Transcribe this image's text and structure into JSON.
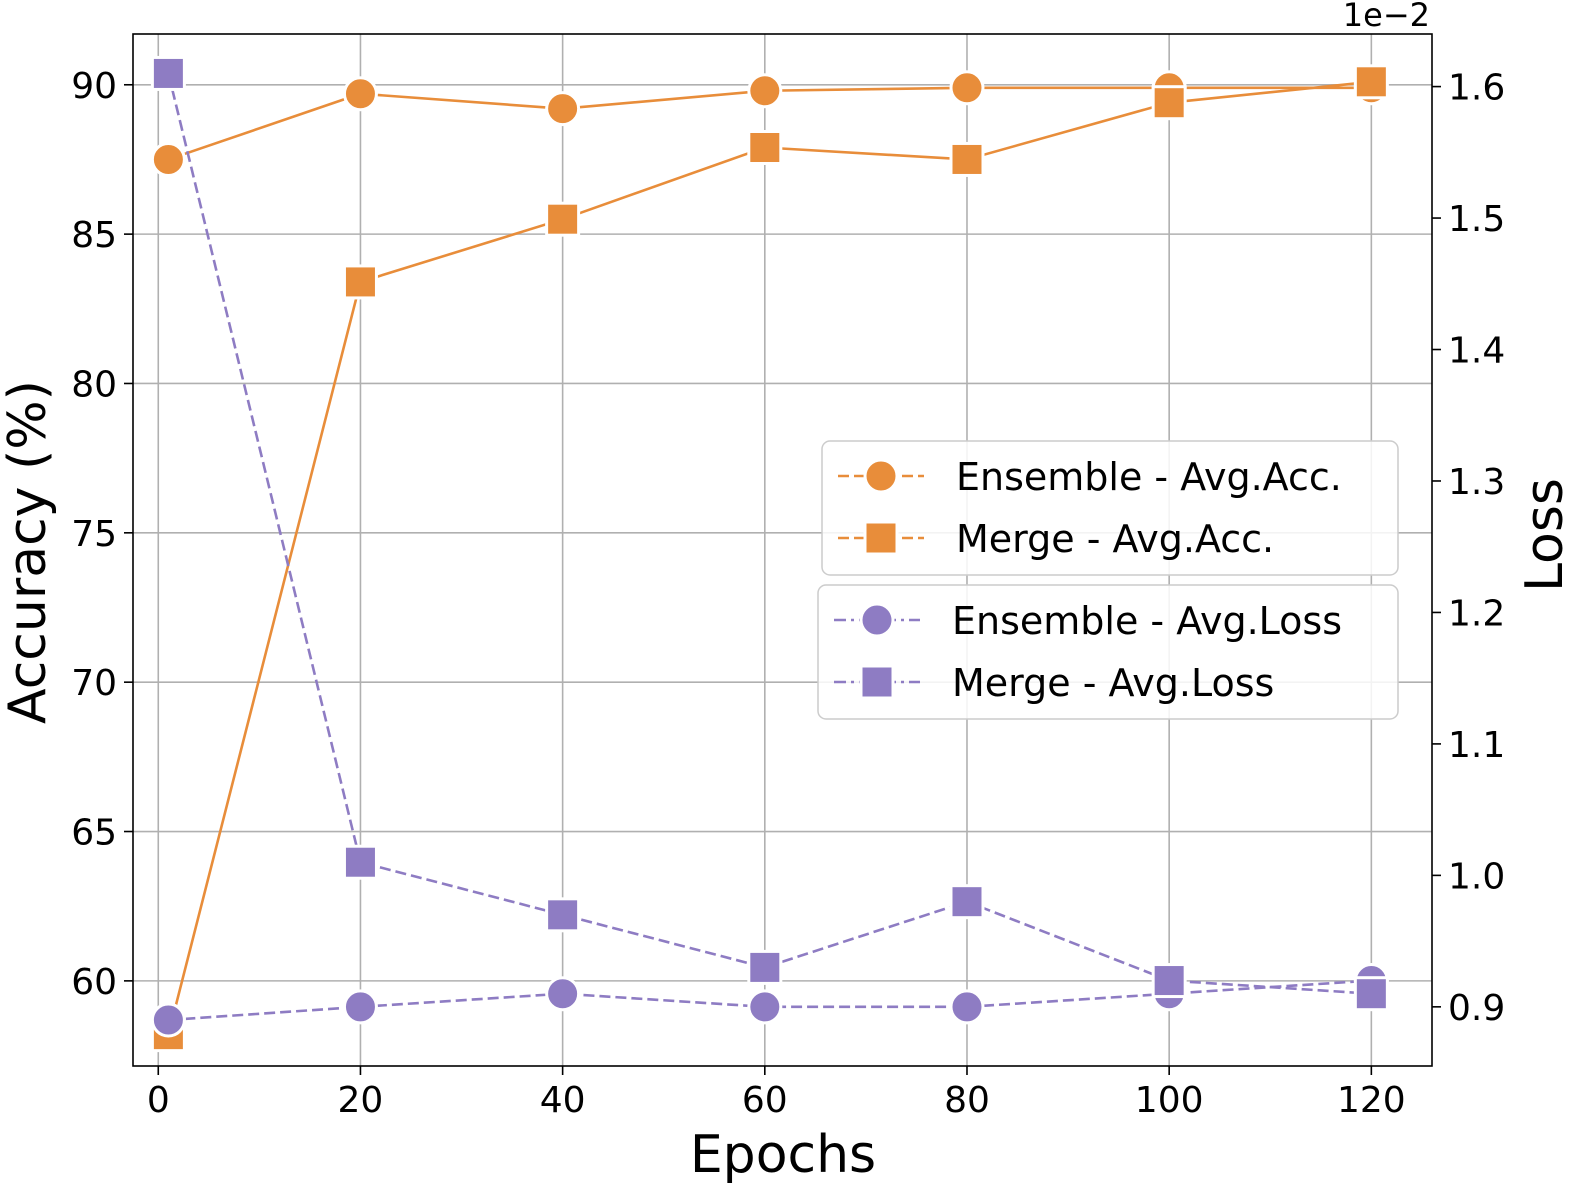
{
  "chart_data": {
    "type": "line",
    "title": "",
    "xlabel": "Epochs",
    "ylabel_left": "Accuracy (%)",
    "ylabel_right": "Loss",
    "right_axis_offset_text": "1e−2",
    "xlim": [
      -2.5,
      126
    ],
    "ylim_left": [
      57.15,
      91.7
    ],
    "ylim_right": [
      0.855,
      1.64
    ],
    "x_ticks": [
      0,
      20,
      40,
      60,
      80,
      100,
      120
    ],
    "x_tick_labels": [
      "0",
      "20",
      "40",
      "60",
      "80",
      "100",
      "120"
    ],
    "y_left_ticks": [
      60,
      65,
      70,
      75,
      80,
      85,
      90
    ],
    "y_left_tick_labels": [
      "60",
      "65",
      "70",
      "75",
      "80",
      "85",
      "90"
    ],
    "y_right_ticks": [
      0.9,
      1.0,
      1.1,
      1.2,
      1.3,
      1.4,
      1.5,
      1.6
    ],
    "y_right_tick_labels": [
      "0.9",
      "1.0",
      "1.1",
      "1.2",
      "1.3",
      "1.4",
      "1.5",
      "1.6"
    ],
    "grid": true,
    "x": [
      1,
      20,
      40,
      60,
      80,
      100,
      120
    ],
    "series": [
      {
        "name": "Ensemble - Avg.Acc.",
        "axis": "left",
        "marker": "circle",
        "style": "solid",
        "legend_style": "dashed",
        "color": "#E88D3A",
        "values": [
          87.5,
          89.7,
          89.2,
          89.8,
          89.9,
          89.9,
          89.9
        ]
      },
      {
        "name": "Merge - Avg.Acc.",
        "axis": "left",
        "marker": "square",
        "style": "solid",
        "legend_style": "dashed",
        "color": "#E88D3A",
        "values": [
          58.2,
          83.4,
          85.5,
          87.9,
          87.5,
          89.4,
          90.1
        ]
      },
      {
        "name": "Ensemble - Avg.Loss",
        "axis": "right",
        "marker": "circle",
        "style": "dashed",
        "legend_style": "dashdot",
        "color": "#8E7CC3",
        "values": [
          0.89,
          0.9,
          0.91,
          0.9,
          0.9,
          0.91,
          0.92
        ]
      },
      {
        "name": "Merge - Avg.Loss",
        "axis": "right",
        "marker": "square",
        "style": "dashed",
        "legend_style": "dashdot",
        "color": "#8E7CC3",
        "values": [
          1.61,
          1.01,
          0.97,
          0.93,
          0.98,
          0.92,
          0.91
        ]
      }
    ],
    "legends": [
      {
        "location": "center-right",
        "entries": [
          "Ensemble - Avg.Acc.",
          "Merge - Avg.Acc."
        ]
      },
      {
        "location": "center-right",
        "entries": [
          "Ensemble - Avg.Loss",
          "Merge - Avg.Loss"
        ]
      }
    ]
  }
}
